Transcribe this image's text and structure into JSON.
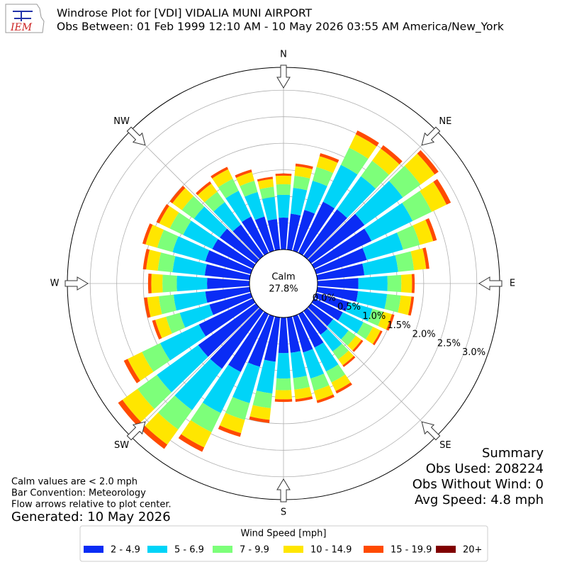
{
  "chart_data": {
    "type": "windrose",
    "title": "Windrose Plot for [VDI] VIDALIA MUNI AIRPORT",
    "subtitle": "Obs Between: 01 Feb 1999 12:10 AM - 10 May 2026 03:55 AM America/New_York",
    "logo_text": "IEM",
    "x": [
      0,
      10,
      20,
      30,
      40,
      50,
      60,
      70,
      80,
      90,
      100,
      110,
      120,
      130,
      140,
      150,
      160,
      170,
      180,
      190,
      200,
      210,
      220,
      230,
      240,
      250,
      260,
      270,
      280,
      290,
      300,
      310,
      320,
      330,
      340,
      350
    ],
    "compass": [
      "N",
      "NE",
      "E",
      "SE",
      "S",
      "SW",
      "W",
      "NW"
    ],
    "rlim": [
      0,
      3.43
    ],
    "rticks": [
      {
        "value": 0,
        "label": "0.0%"
      },
      {
        "value": 0.5,
        "label": "0.5%"
      },
      {
        "value": 1,
        "label": "1.0%"
      },
      {
        "value": 1.5,
        "label": "1.5%"
      },
      {
        "value": 2,
        "label": "2.0%"
      },
      {
        "value": 2.5,
        "label": "2.5%"
      },
      {
        "value": 3,
        "label": "3.0%"
      }
    ],
    "grid": true,
    "calm_label": "Calm",
    "calm_value": 27.8,
    "calm_value_label": "27.8%",
    "legend_title": "Wind Speed [mph]",
    "series": [
      {
        "name": "2 - 4.9",
        "color": "#0a2cf5",
        "values": [
          0.6,
          0.68,
          0.8,
          1.07,
          1.08,
          1.24,
          1.2,
          0.99,
          0.89,
          0.77,
          0.77,
          0.64,
          0.6,
          0.51,
          0.55,
          0.7,
          0.71,
          0.67,
          0.67,
          0.84,
          0.99,
          1.21,
          1.34,
          1.34,
          1.13,
          0.81,
          0.84,
          0.8,
          0.85,
          0.89,
          0.85,
          0.84,
          0.73,
          0.76,
          0.67,
          0.58
        ]
      },
      {
        "name": "5 - 6.9",
        "color": "#00d4f8",
        "values": [
          0.43,
          0.49,
          0.57,
          0.77,
          0.77,
          0.89,
          0.86,
          0.71,
          0.64,
          0.55,
          0.55,
          0.46,
          0.43,
          0.36,
          0.39,
          0.5,
          0.51,
          0.48,
          0.48,
          0.6,
          0.71,
          0.86,
          0.96,
          0.96,
          0.81,
          0.58,
          0.6,
          0.57,
          0.61,
          0.64,
          0.61,
          0.6,
          0.52,
          0.54,
          0.48,
          0.42
        ]
      },
      {
        "name": "7 - 9.9",
        "color": "#7dff7a",
        "values": [
          0.2,
          0.23,
          0.27,
          0.36,
          0.36,
          0.41,
          0.4,
          0.33,
          0.3,
          0.26,
          0.26,
          0.21,
          0.2,
          0.17,
          0.18,
          0.23,
          0.24,
          0.22,
          0.22,
          0.28,
          0.33,
          0.4,
          0.45,
          0.45,
          0.38,
          0.27,
          0.28,
          0.27,
          0.28,
          0.3,
          0.28,
          0.28,
          0.24,
          0.25,
          0.22,
          0.19
        ]
      },
      {
        "name": "10 - 14.9",
        "color": "#ffe600",
        "values": [
          0.16,
          0.18,
          0.21,
          0.28,
          0.28,
          0.33,
          0.31,
          0.26,
          0.23,
          0.2,
          0.2,
          0.17,
          0.16,
          0.13,
          0.14,
          0.18,
          0.19,
          0.18,
          0.17,
          0.22,
          0.26,
          0.32,
          0.35,
          0.35,
          0.3,
          0.21,
          0.22,
          0.21,
          0.22,
          0.23,
          0.22,
          0.22,
          0.19,
          0.2,
          0.17,
          0.15
        ]
      },
      {
        "name": "15 - 19.9",
        "color": "#ff4a00",
        "values": [
          0.04,
          0.05,
          0.06,
          0.08,
          0.08,
          0.09,
          0.09,
          0.07,
          0.06,
          0.05,
          0.05,
          0.05,
          0.04,
          0.04,
          0.04,
          0.05,
          0.05,
          0.05,
          0.05,
          0.06,
          0.07,
          0.09,
          0.1,
          0.1,
          0.08,
          0.06,
          0.06,
          0.06,
          0.06,
          0.06,
          0.06,
          0.06,
          0.05,
          0.05,
          0.05,
          0.04
        ]
      },
      {
        "name": "20+",
        "color": "#800000",
        "values": [
          0,
          0,
          0,
          0,
          0,
          0,
          0,
          0,
          0,
          0,
          0,
          0,
          0,
          0,
          0,
          0,
          0,
          0,
          0,
          0,
          0,
          0,
          0,
          0,
          0,
          0,
          0,
          0,
          0,
          0,
          0,
          0,
          0,
          0,
          0,
          0
        ]
      }
    ],
    "summary": [
      "Summary",
      "Obs Used: 208224",
      "Obs Without Wind: 0",
      "Avg Speed: 4.8 mph"
    ],
    "notes": [
      "Calm values are < 2.0 mph",
      "Bar Convention: Meteorology",
      "Flow arrows relative to plot center."
    ],
    "generated": "Generated: 10 May 2026"
  }
}
